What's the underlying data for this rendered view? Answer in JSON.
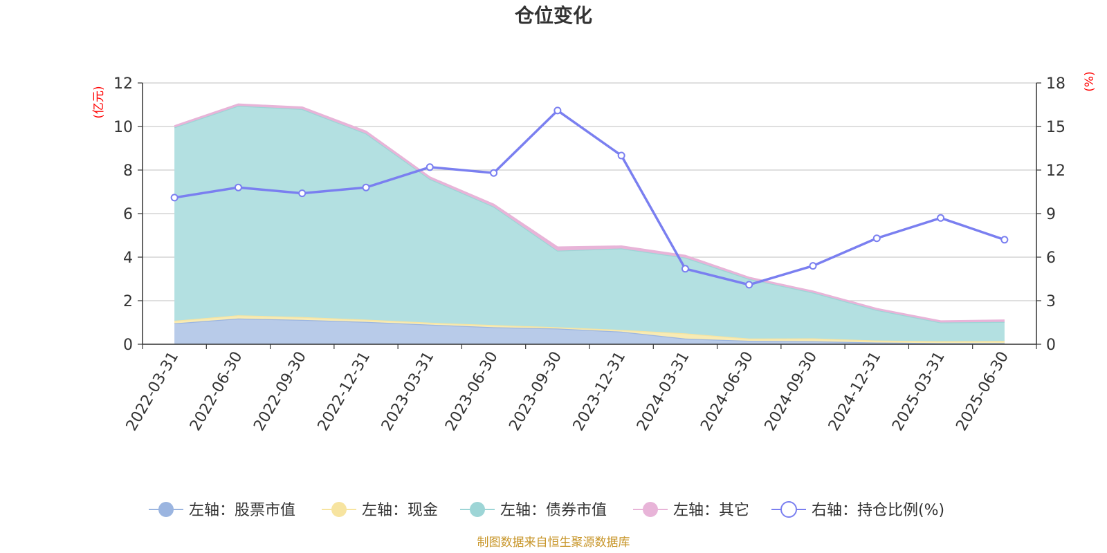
{
  "chart_data": {
    "type": "area",
    "title": "仓位变化",
    "left_axis_unit": "(亿元)",
    "right_axis_unit": "(%)",
    "categories": [
      "2022-03-31",
      "2022-06-30",
      "2022-09-30",
      "2022-12-31",
      "2023-03-31",
      "2023-06-30",
      "2023-09-30",
      "2023-12-31",
      "2024-03-31",
      "2024-06-30",
      "2024-09-30",
      "2024-12-31",
      "2025-03-31",
      "2025-06-30"
    ],
    "left_ylim": [
      0,
      12
    ],
    "left_ticks": [
      "0",
      "2",
      "4",
      "6",
      "8",
      "10",
      "12"
    ],
    "right_ylim": [
      0,
      18
    ],
    "right_ticks": [
      "0",
      "3",
      "6",
      "9",
      "12",
      "15",
      "18"
    ],
    "grid": true,
    "legend_position": "bottom",
    "stacked_series": [
      {
        "name": "左轴：股票市值",
        "axis": "left",
        "color": "#9bb5e0",
        "fill": "#b8cbe9",
        "values": [
          0.96,
          1.18,
          1.12,
          1.03,
          0.9,
          0.78,
          0.72,
          0.58,
          0.26,
          0.16,
          0.14,
          0.08,
          0.05,
          0.05
        ]
      },
      {
        "name": "左轴：现金",
        "axis": "left",
        "color": "#f7e4a0",
        "fill": "#f8ebb4",
        "values": [
          0.12,
          0.15,
          0.13,
          0.1,
          0.09,
          0.1,
          0.06,
          0.08,
          0.24,
          0.1,
          0.13,
          0.09,
          0.09,
          0.1
        ]
      },
      {
        "name": "左轴：债券市值",
        "axis": "left",
        "color": "#9dd5d6",
        "fill": "#b3e0e1",
        "values": [
          8.88,
          9.62,
          9.55,
          8.55,
          6.6,
          5.44,
          3.52,
          3.74,
          3.48,
          2.74,
          2.1,
          1.4,
          0.86,
          0.88
        ]
      },
      {
        "name": "左轴：其它",
        "axis": "left",
        "color": "#e8b4d8",
        "fill": "#e8b4d8",
        "values": [
          0.06,
          0.07,
          0.08,
          0.09,
          0.08,
          0.1,
          0.15,
          0.1,
          0.09,
          0.06,
          0.06,
          0.06,
          0.06,
          0.07
        ]
      }
    ],
    "line_series": {
      "name": "右轴：持仓比例(%)",
      "axis": "right",
      "color": "#7a7ff0",
      "values": [
        10.1,
        10.8,
        10.4,
        10.8,
        12.2,
        11.8,
        16.1,
        13.0,
        5.2,
        4.1,
        5.4,
        7.3,
        8.7,
        7.2
      ]
    }
  },
  "source": "制图数据来自恒生聚源数据库"
}
